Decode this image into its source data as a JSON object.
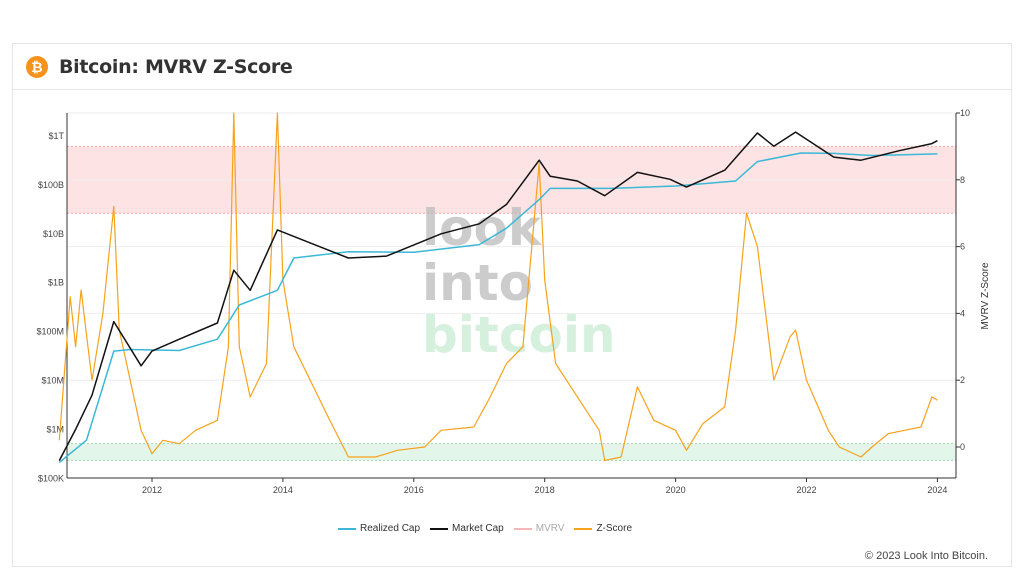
{
  "header": {
    "title": "Bitcoin: MVRV Z-Score",
    "logo_glyph": "₿"
  },
  "footer": {
    "copyright": "© 2023 Look Into Bitcoin."
  },
  "watermark": [
    "look",
    "into",
    "bitcoin"
  ],
  "colors": {
    "realized": "#3bb8d8",
    "market": "#111111",
    "mvrv": "#f4b6b6",
    "zscore": "#f7a21b",
    "red_band": "#fde3e3",
    "green_band": "#e3f6ea"
  },
  "chart_data": {
    "type": "line",
    "title": "Bitcoin: MVRV Z-Score",
    "x_range": [
      "2010-08",
      "2024-04"
    ],
    "x_ticks": [
      "2012",
      "2014",
      "2016",
      "2018",
      "2020",
      "2022",
      "2024"
    ],
    "y_left": {
      "scale": "log",
      "range": [
        100000,
        2000000000000
      ],
      "ticks": [
        {
          "v": 100000.0,
          "l": "$100K"
        },
        {
          "v": 1000000.0,
          "l": "$1M"
        },
        {
          "v": 10000000.0,
          "l": "$10M"
        },
        {
          "v": 100000000.0,
          "l": "$100M"
        },
        {
          "v": 1000000000.0,
          "l": "$1B"
        },
        {
          "v": 10000000000.0,
          "l": "$10B"
        },
        {
          "v": 100000000000.0,
          "l": "$100B"
        },
        {
          "v": 1000000000000.0,
          "l": "$1T"
        }
      ]
    },
    "y_right": {
      "label": "MVRV Z-Score",
      "range": [
        -0.9,
        10
      ],
      "ticks": [
        0,
        2,
        4,
        6,
        8,
        10
      ]
    },
    "bands": [
      {
        "from": 7,
        "to": 9,
        "color": "red"
      },
      {
        "from": -0.4,
        "to": 0.1,
        "color": "green"
      }
    ],
    "grid": true,
    "legend_position": "bottom",
    "legend": [
      "Realized Cap",
      "Market Cap",
      "MVRV",
      "Z-Score"
    ],
    "series": [
      {
        "name": "Realized Cap",
        "axis": "left",
        "points": [
          [
            "2010-08",
            210000.0
          ],
          [
            "2011-01",
            600000.0
          ],
          [
            "2011-06",
            40000000.0
          ],
          [
            "2011-09",
            43000000.0
          ],
          [
            "2012-06",
            41000000.0
          ],
          [
            "2013-01",
            70000000.0
          ],
          [
            "2013-05",
            350000000.0
          ],
          [
            "2013-12",
            700000000.0
          ],
          [
            "2014-03",
            3200000000.0
          ],
          [
            "2015-01",
            4300000000.0
          ],
          [
            "2016-01",
            4200000000.0
          ],
          [
            "2017-01",
            6000000000.0
          ],
          [
            "2017-06",
            13000000000.0
          ],
          [
            "2017-12",
            50000000000.0
          ],
          [
            "2018-02",
            85000000000.0
          ],
          [
            "2019-01",
            85000000000.0
          ],
          [
            "2020-01",
            95000000000.0
          ],
          [
            "2020-12",
            120000000000.0
          ],
          [
            "2021-04",
            300000000000.0
          ],
          [
            "2021-12",
            450000000000.0
          ],
          [
            "2022-06",
            440000000000.0
          ],
          [
            "2023-01",
            400000000000.0
          ],
          [
            "2024-01",
            430000000000.0
          ]
        ]
      },
      {
        "name": "Market Cap",
        "axis": "left",
        "points": [
          [
            "2010-08",
            230000.0
          ],
          [
            "2010-11",
            1000000.0
          ],
          [
            "2011-02",
            5000000.0
          ],
          [
            "2011-06",
            160000000.0
          ],
          [
            "2011-11",
            20000000.0
          ],
          [
            "2012-01",
            40000000.0
          ],
          [
            "2012-06",
            70000000.0
          ],
          [
            "2013-01",
            150000000.0
          ],
          [
            "2013-04",
            1800000000.0
          ],
          [
            "2013-07",
            700000000.0
          ],
          [
            "2013-12",
            12000000000.0
          ],
          [
            "2014-06",
            6500000000.0
          ],
          [
            "2015-01",
            3200000000.0
          ],
          [
            "2015-08",
            3500000000.0
          ],
          [
            "2016-06",
            10000000000.0
          ],
          [
            "2017-01",
            16000000000.0
          ],
          [
            "2017-06",
            40000000000.0
          ],
          [
            "2017-12",
            320000000000.0
          ],
          [
            "2018-02",
            150000000000.0
          ],
          [
            "2018-07",
            120000000000.0
          ],
          [
            "2018-12",
            60000000000.0
          ],
          [
            "2019-06",
            180000000000.0
          ],
          [
            "2019-12",
            130000000000.0
          ],
          [
            "2020-03",
            90000000000.0
          ],
          [
            "2020-10",
            200000000000.0
          ],
          [
            "2021-04",
            1150000000000.0
          ],
          [
            "2021-07",
            620000000000.0
          ],
          [
            "2021-11",
            1200000000000.0
          ],
          [
            "2022-06",
            370000000000.0
          ],
          [
            "2022-11",
            320000000000.0
          ],
          [
            "2023-06",
            500000000000.0
          ],
          [
            "2023-12",
            700000000000.0
          ],
          [
            "2024-01",
            800000000000.0
          ]
        ]
      },
      {
        "name": "Z-Score",
        "axis": "right",
        "points": [
          [
            "2010-08",
            0.2
          ],
          [
            "2010-10",
            4.5
          ],
          [
            "2010-11",
            3
          ],
          [
            "2010-12",
            4.7
          ],
          [
            "2011-02",
            2
          ],
          [
            "2011-04",
            4
          ],
          [
            "2011-06",
            7.2
          ],
          [
            "2011-07",
            3.5
          ],
          [
            "2011-09",
            2
          ],
          [
            "2011-11",
            0.5
          ],
          [
            "2012-01",
            -0.2
          ],
          [
            "2012-03",
            0.2
          ],
          [
            "2012-06",
            0.1
          ],
          [
            "2012-09",
            0.5
          ],
          [
            "2013-01",
            0.8
          ],
          [
            "2013-03",
            3
          ],
          [
            "2013-04",
            10.5
          ],
          [
            "2013-05",
            3
          ],
          [
            "2013-07",
            1.5
          ],
          [
            "2013-10",
            2.5
          ],
          [
            "2013-12",
            10.5
          ],
          [
            "2014-01",
            5
          ],
          [
            "2014-03",
            3
          ],
          [
            "2014-06",
            2
          ],
          [
            "2014-09",
            1
          ],
          [
            "2015-01",
            -0.3
          ],
          [
            "2015-06",
            -0.3
          ],
          [
            "2015-10",
            -0.1
          ],
          [
            "2016-03",
            0
          ],
          [
            "2016-06",
            0.5
          ],
          [
            "2016-12",
            0.6
          ],
          [
            "2017-03",
            1.5
          ],
          [
            "2017-06",
            2.5
          ],
          [
            "2017-09",
            3
          ],
          [
            "2017-12",
            8.5
          ],
          [
            "2018-01",
            5
          ],
          [
            "2018-03",
            2.5
          ],
          [
            "2018-07",
            1.5
          ],
          [
            "2018-11",
            0.5
          ],
          [
            "2018-12",
            -0.4
          ],
          [
            "2019-03",
            -0.3
          ],
          [
            "2019-06",
            1.8
          ],
          [
            "2019-09",
            0.8
          ],
          [
            "2020-01",
            0.5
          ],
          [
            "2020-03",
            -0.1
          ],
          [
            "2020-06",
            0.7
          ],
          [
            "2020-10",
            1.2
          ],
          [
            "2020-12",
            3.5
          ],
          [
            "2021-02",
            7
          ],
          [
            "2021-04",
            6
          ],
          [
            "2021-07",
            2
          ],
          [
            "2021-10",
            3.3
          ],
          [
            "2021-11",
            3.5
          ],
          [
            "2022-01",
            2
          ],
          [
            "2022-05",
            0.5
          ],
          [
            "2022-07",
            0
          ],
          [
            "2022-11",
            -0.3
          ],
          [
            "2023-01",
            0
          ],
          [
            "2023-04",
            0.4
          ],
          [
            "2023-07",
            0.5
          ],
          [
            "2023-10",
            0.6
          ],
          [
            "2023-12",
            1.5
          ],
          [
            "2024-01",
            1.4
          ]
        ]
      }
    ]
  }
}
